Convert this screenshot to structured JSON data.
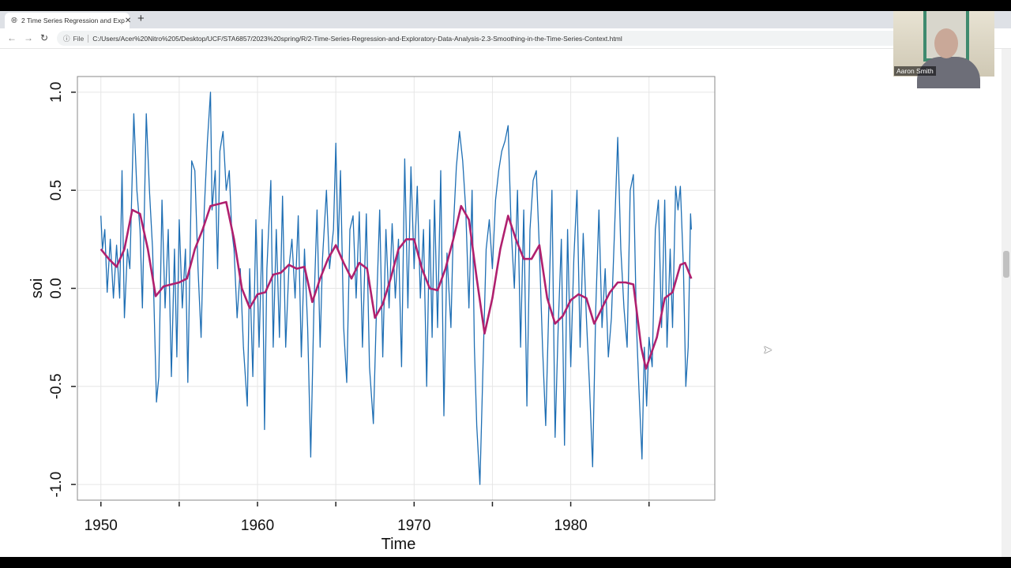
{
  "browser": {
    "tab_title": "2 Time Series Regression and Exp",
    "tab_icon": "globe-icon",
    "new_tab": "+",
    "close": "✕",
    "file_label": "File",
    "url": "C:/Users/Acer%20Nitro%205/Desktop/UCF/STA6857/2023%20spring/R/2-Time-Series-Regression-and-Exploratory-Data-Analysis-2.3-Smoothing-in-the-Time-Series-Context.html"
  },
  "webcam": {
    "name": "Aaron Smith"
  },
  "chart_data": {
    "type": "line",
    "title": "",
    "xlabel": "Time",
    "ylabel": "soi",
    "xlim": [
      1948.5,
      1989.2
    ],
    "ylim": [
      -1.08,
      1.08
    ],
    "x_ticks": [
      1950,
      1955,
      1960,
      1965,
      1970,
      1975,
      1980,
      1985
    ],
    "x_tick_labels": [
      "1950",
      "",
      "1960",
      "",
      "1970",
      "",
      "1980",
      ""
    ],
    "y_ticks": [
      -1.0,
      -0.5,
      0.0,
      0.5,
      1.0
    ],
    "y_tick_labels": [
      "-1.0",
      "-0.5",
      "0.0",
      "0.5",
      "1.0"
    ],
    "grid": true,
    "colors": {
      "raw": "#1f6fb4",
      "smooth": "#b0206e",
      "grid": "#e6e6e6"
    },
    "series": [
      {
        "role": "raw",
        "x": [
          1950.0,
          1950.1,
          1950.25,
          1950.4,
          1950.6,
          1950.8,
          1951.0,
          1951.2,
          1951.35,
          1951.5,
          1951.7,
          1951.85,
          1952.1,
          1952.3,
          1952.5,
          1952.65,
          1952.9,
          1953.1,
          1953.3,
          1953.55,
          1953.7,
          1953.9,
          1954.1,
          1954.3,
          1954.5,
          1954.7,
          1954.85,
          1955.0,
          1955.2,
          1955.4,
          1955.55,
          1955.8,
          1956.0,
          1956.2,
          1956.4,
          1956.6,
          1956.8,
          1957.0,
          1957.1,
          1957.3,
          1957.45,
          1957.6,
          1957.8,
          1958.0,
          1958.2,
          1958.35,
          1958.5,
          1958.7,
          1958.9,
          1959.1,
          1959.35,
          1959.5,
          1959.7,
          1959.9,
          1960.1,
          1960.3,
          1960.45,
          1960.6,
          1960.85,
          1961.0,
          1961.2,
          1961.4,
          1961.6,
          1961.8,
          1962.0,
          1962.2,
          1962.4,
          1962.6,
          1962.8,
          1963.0,
          1963.2,
          1963.4,
          1963.6,
          1963.8,
          1964.0,
          1964.15,
          1964.4,
          1964.6,
          1964.85,
          1965.0,
          1965.15,
          1965.3,
          1965.5,
          1965.7,
          1965.9,
          1966.1,
          1966.3,
          1966.5,
          1966.7,
          1966.95,
          1967.15,
          1967.4,
          1967.6,
          1967.8,
          1968.0,
          1968.2,
          1968.4,
          1968.6,
          1968.8,
          1969.0,
          1969.2,
          1969.4,
          1969.6,
          1969.8,
          1970.0,
          1970.2,
          1970.4,
          1970.6,
          1970.8,
          1971.0,
          1971.15,
          1971.3,
          1971.5,
          1971.7,
          1971.9,
          1972.1,
          1972.35,
          1972.5,
          1972.7,
          1972.9,
          1973.1,
          1973.3,
          1973.5,
          1973.7,
          1973.85,
          1974.0,
          1974.2,
          1974.4,
          1974.6,
          1974.8,
          1975.0,
          1975.2,
          1975.4,
          1975.6,
          1975.8,
          1976.0,
          1976.2,
          1976.4,
          1976.6,
          1976.8,
          1977.0,
          1977.2,
          1977.4,
          1977.6,
          1977.8,
          1978.0,
          1978.2,
          1978.4,
          1978.6,
          1978.8,
          1979.0,
          1979.2,
          1979.4,
          1979.6,
          1979.8,
          1980.0,
          1980.2,
          1980.4,
          1980.6,
          1980.8,
          1981.0,
          1981.2,
          1981.4,
          1981.6,
          1981.8,
          1982.0,
          1982.2,
          1982.4,
          1982.6,
          1982.8,
          1983.0,
          1983.2,
          1983.4,
          1983.6,
          1983.8,
          1984.0,
          1984.2,
          1984.35,
          1984.55,
          1984.7,
          1984.85,
          1985.0,
          1985.2,
          1985.4,
          1985.6,
          1985.8,
          1986.0,
          1986.15,
          1986.35,
          1986.5,
          1986.7,
          1986.85,
          1987.0,
          1987.2,
          1987.35,
          1987.5,
          1987.65,
          1987.7
        ],
        "y": [
          0.37,
          0.2,
          0.3,
          -0.02,
          0.25,
          -0.05,
          0.22,
          -0.05,
          0.6,
          -0.15,
          0.2,
          0.1,
          0.89,
          0.5,
          0.3,
          -0.1,
          0.89,
          0.5,
          0.2,
          -0.58,
          -0.45,
          0.45,
          -0.1,
          0.3,
          -0.45,
          0.2,
          -0.35,
          0.35,
          -0.1,
          0.2,
          -0.48,
          0.65,
          0.6,
          0.1,
          -0.25,
          0.4,
          0.75,
          1.0,
          0.4,
          0.6,
          0.1,
          0.7,
          0.8,
          0.5,
          0.6,
          0.3,
          0.2,
          -0.15,
          0.1,
          -0.3,
          -0.6,
          0.1,
          -0.45,
          0.35,
          -0.3,
          0.3,
          -0.72,
          0.1,
          0.55,
          -0.3,
          0.3,
          -0.25,
          0.47,
          -0.3,
          0.1,
          0.25,
          -0.05,
          0.37,
          -0.35,
          0.2,
          -0.2,
          -0.86,
          -0.1,
          0.4,
          -0.3,
          0.15,
          0.5,
          0.1,
          0.3,
          0.74,
          0.2,
          0.6,
          -0.2,
          -0.48,
          0.3,
          0.37,
          -0.05,
          0.39,
          -0.3,
          0.38,
          -0.4,
          -0.69,
          -0.1,
          0.4,
          -0.35,
          0.3,
          -0.1,
          0.33,
          -0.05,
          0.25,
          -0.4,
          0.66,
          -0.1,
          0.62,
          0.1,
          0.52,
          -0.05,
          0.3,
          -0.5,
          0.35,
          -0.25,
          0.45,
          -0.2,
          0.6,
          -0.65,
          0.18,
          -0.2,
          0.3,
          0.62,
          0.8,
          0.65,
          0.4,
          -0.1,
          0.5,
          -0.3,
          -0.7,
          -1.0,
          -0.4,
          0.2,
          0.35,
          0.1,
          0.45,
          0.6,
          0.7,
          0.75,
          0.83,
          0.3,
          0.0,
          0.5,
          -0.3,
          0.4,
          -0.6,
          0.3,
          0.55,
          0.6,
          0.2,
          -0.3,
          -0.7,
          -0.1,
          0.5,
          -0.76,
          -0.2,
          0.25,
          -0.8,
          0.3,
          -0.4,
          0.15,
          0.5,
          -0.3,
          0.28,
          -0.15,
          -0.5,
          -0.91,
          -0.1,
          0.4,
          -0.2,
          0.1,
          -0.35,
          -0.15,
          0.3,
          0.77,
          0.2,
          -0.1,
          -0.3,
          0.5,
          0.58,
          -0.2,
          -0.5,
          -0.87,
          -0.3,
          -0.6,
          -0.25,
          -0.4,
          0.3,
          0.45,
          -0.2,
          0.45,
          -0.3,
          0.2,
          -0.2,
          0.52,
          0.4,
          0.52,
          0.1,
          -0.5,
          -0.3,
          0.38,
          0.3
        ]
      },
      {
        "role": "smooth",
        "x": [
          1950.0,
          1950.5,
          1951.0,
          1951.5,
          1952.0,
          1952.5,
          1953.0,
          1953.5,
          1954.0,
          1955.0,
          1955.5,
          1956.0,
          1956.5,
          1957.0,
          1957.5,
          1958.0,
          1958.5,
          1959.0,
          1959.5,
          1960.0,
          1960.5,
          1961.0,
          1961.5,
          1962.0,
          1962.5,
          1963.0,
          1963.5,
          1964.0,
          1964.5,
          1965.0,
          1965.5,
          1966.0,
          1966.5,
          1967.0,
          1967.5,
          1968.0,
          1968.5,
          1969.0,
          1969.5,
          1970.0,
          1970.5,
          1971.0,
          1971.5,
          1972.0,
          1972.5,
          1973.0,
          1973.5,
          1974.0,
          1974.5,
          1975.0,
          1975.5,
          1976.0,
          1976.5,
          1977.0,
          1977.5,
          1978.0,
          1978.5,
          1979.0,
          1979.5,
          1980.0,
          1980.5,
          1981.0,
          1981.5,
          1982.0,
          1982.5,
          1983.0,
          1983.5,
          1984.0,
          1984.5,
          1984.8,
          1985.5,
          1986.0,
          1986.5,
          1987.0,
          1987.3,
          1987.7
        ],
        "y": [
          0.2,
          0.15,
          0.11,
          0.2,
          0.4,
          0.38,
          0.2,
          -0.04,
          0.01,
          0.03,
          0.05,
          0.2,
          0.3,
          0.42,
          0.43,
          0.44,
          0.25,
          0.0,
          -0.1,
          -0.03,
          -0.02,
          0.07,
          0.08,
          0.12,
          0.1,
          0.11,
          -0.07,
          0.05,
          0.15,
          0.22,
          0.13,
          0.05,
          0.13,
          0.1,
          -0.15,
          -0.08,
          0.05,
          0.2,
          0.25,
          0.25,
          0.1,
          0.0,
          -0.01,
          0.1,
          0.25,
          0.42,
          0.35,
          0.05,
          -0.23,
          -0.05,
          0.2,
          0.37,
          0.25,
          0.15,
          0.15,
          0.22,
          -0.05,
          -0.18,
          -0.14,
          -0.06,
          -0.03,
          -0.05,
          -0.18,
          -0.1,
          -0.02,
          0.03,
          0.03,
          0.02,
          -0.3,
          -0.41,
          -0.25,
          -0.05,
          -0.02,
          0.12,
          0.13,
          0.05
        ]
      }
    ]
  }
}
